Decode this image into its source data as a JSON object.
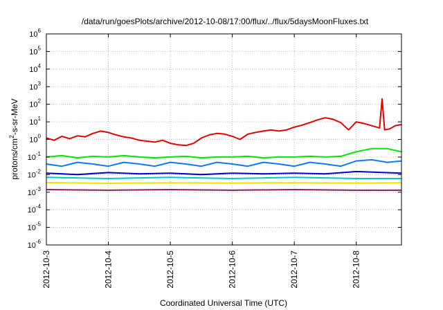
{
  "chart_data": {
    "type": "line",
    "title": "/data/run/goesPlots/archive/2012-10-08/17:00/flux/../flux/5daysMoonFluxes.txt",
    "xlabel": "Coordinated Universal Time (UTC)",
    "ylabel": {
      "base": "protons/cm",
      "sup": "2",
      "rest": "-s-sr-MeV"
    },
    "y_scale": "log",
    "ylim": [
      1e-06,
      1000000.0
    ],
    "xlim": [
      "2012-10-03 00:00",
      "2012-10-08 17:30"
    ],
    "grid": true,
    "legend": "none",
    "x_ticks": [
      "2012-10-3",
      "2012-10-4",
      "2012-10-5",
      "2012-10-6",
      "2012-10-7",
      "2012-10-8"
    ],
    "y_ticks": [
      {
        "value": 1000000.0,
        "mant": "10",
        "exp": "6"
      },
      {
        "value": 100000.0,
        "mant": "10",
        "exp": "5"
      },
      {
        "value": 10000.0,
        "mant": "10",
        "exp": "4"
      },
      {
        "value": 1000.0,
        "mant": "10",
        "exp": "3"
      },
      {
        "value": 100.0,
        "mant": "10",
        "exp": "2"
      },
      {
        "value": 10.0,
        "mant": "10",
        "exp": "1"
      },
      {
        "value": 1.0,
        "mant": "10",
        "exp": "0"
      },
      {
        "value": 0.1,
        "mant": "10",
        "exp": "-1"
      },
      {
        "value": 0.01,
        "mant": "10",
        "exp": "-2"
      },
      {
        "value": 0.001,
        "mant": "10",
        "exp": "-3"
      },
      {
        "value": 0.0001,
        "mant": "10",
        "exp": "-4"
      },
      {
        "value": 1e-05,
        "mant": "10",
        "exp": "-5"
      },
      {
        "value": 1e-06,
        "mant": "10",
        "exp": "-6"
      }
    ],
    "series": [
      {
        "color": "#e60000",
        "points": [
          [
            "2012-10-03 00:00",
            1.2
          ],
          [
            "2012-10-03 03:00",
            0.9
          ],
          [
            "2012-10-03 06:00",
            1.5
          ],
          [
            "2012-10-03 09:00",
            1.1
          ],
          [
            "2012-10-03 12:00",
            1.6
          ],
          [
            "2012-10-03 15:00",
            1.4
          ],
          [
            "2012-10-03 18:00",
            2.2
          ],
          [
            "2012-10-03 21:00",
            3.0
          ],
          [
            "2012-10-04 00:00",
            2.5
          ],
          [
            "2012-10-04 03:00",
            1.8
          ],
          [
            "2012-10-04 06:00",
            1.4
          ],
          [
            "2012-10-04 09:00",
            1.2
          ],
          [
            "2012-10-04 12:00",
            0.9
          ],
          [
            "2012-10-04 15:00",
            0.8
          ],
          [
            "2012-10-04 18:00",
            0.7
          ],
          [
            "2012-10-04 21:00",
            0.9
          ],
          [
            "2012-10-05 00:00",
            0.6
          ],
          [
            "2012-10-05 03:00",
            0.5
          ],
          [
            "2012-10-05 06:00",
            0.45
          ],
          [
            "2012-10-05 09:00",
            0.6
          ],
          [
            "2012-10-05 12:00",
            1.2
          ],
          [
            "2012-10-05 15:00",
            1.8
          ],
          [
            "2012-10-05 18:00",
            2.2
          ],
          [
            "2012-10-05 21:00",
            2.0
          ],
          [
            "2012-10-06 00:00",
            1.5
          ],
          [
            "2012-10-06 03:00",
            1.0
          ],
          [
            "2012-10-06 06:00",
            2.0
          ],
          [
            "2012-10-06 09:00",
            2.5
          ],
          [
            "2012-10-06 12:00",
            3.0
          ],
          [
            "2012-10-06 15:00",
            3.5
          ],
          [
            "2012-10-06 18:00",
            3.0
          ],
          [
            "2012-10-06 21:00",
            3.5
          ],
          [
            "2012-10-07 00:00",
            5.0
          ],
          [
            "2012-10-07 03:00",
            6.5
          ],
          [
            "2012-10-07 06:00",
            9.0
          ],
          [
            "2012-10-07 09:00",
            13
          ],
          [
            "2012-10-07 12:00",
            17
          ],
          [
            "2012-10-07 15:00",
            14
          ],
          [
            "2012-10-07 18:00",
            9
          ],
          [
            "2012-10-07 21:00",
            3.5
          ],
          [
            "2012-10-08 00:00",
            10
          ],
          [
            "2012-10-08 03:00",
            8
          ],
          [
            "2012-10-08 06:00",
            6
          ],
          [
            "2012-10-08 09:00",
            4.5
          ],
          [
            "2012-10-08 10:00",
            200
          ],
          [
            "2012-10-08 11:00",
            3.5
          ],
          [
            "2012-10-08 13:00",
            4
          ],
          [
            "2012-10-08 15:00",
            6
          ],
          [
            "2012-10-08 17:30",
            7
          ]
        ]
      },
      {
        "color": "#00e600",
        "points": [
          [
            "2012-10-03 00:00",
            0.1
          ],
          [
            "2012-10-03 06:00",
            0.12
          ],
          [
            "2012-10-03 12:00",
            0.09
          ],
          [
            "2012-10-03 18:00",
            0.11
          ],
          [
            "2012-10-04 00:00",
            0.1
          ],
          [
            "2012-10-04 06:00",
            0.12
          ],
          [
            "2012-10-04 12:00",
            0.1
          ],
          [
            "2012-10-04 18:00",
            0.09
          ],
          [
            "2012-10-05 00:00",
            0.1
          ],
          [
            "2012-10-05 06:00",
            0.11
          ],
          [
            "2012-10-05 12:00",
            0.09
          ],
          [
            "2012-10-05 18:00",
            0.1
          ],
          [
            "2012-10-06 00:00",
            0.1
          ],
          [
            "2012-10-06 06:00",
            0.11
          ],
          [
            "2012-10-06 12:00",
            0.09
          ],
          [
            "2012-10-06 18:00",
            0.1
          ],
          [
            "2012-10-07 00:00",
            0.1
          ],
          [
            "2012-10-07 06:00",
            0.11
          ],
          [
            "2012-10-07 12:00",
            0.1
          ],
          [
            "2012-10-07 18:00",
            0.11
          ],
          [
            "2012-10-08 00:00",
            0.2
          ],
          [
            "2012-10-08 06:00",
            0.3
          ],
          [
            "2012-10-08 12:00",
            0.3
          ],
          [
            "2012-10-08 17:30",
            0.2
          ]
        ]
      },
      {
        "color": "#0a78ff",
        "points": [
          [
            "2012-10-03 00:00",
            0.04
          ],
          [
            "2012-10-03 06:00",
            0.03
          ],
          [
            "2012-10-03 12:00",
            0.05
          ],
          [
            "2012-10-03 18:00",
            0.04
          ],
          [
            "2012-10-04 00:00",
            0.03
          ],
          [
            "2012-10-04 06:00",
            0.05
          ],
          [
            "2012-10-04 12:00",
            0.04
          ],
          [
            "2012-10-04 18:00",
            0.03
          ],
          [
            "2012-10-05 00:00",
            0.05
          ],
          [
            "2012-10-05 06:00",
            0.04
          ],
          [
            "2012-10-05 12:00",
            0.03
          ],
          [
            "2012-10-05 18:00",
            0.05
          ],
          [
            "2012-10-06 00:00",
            0.04
          ],
          [
            "2012-10-06 06:00",
            0.03
          ],
          [
            "2012-10-06 12:00",
            0.05
          ],
          [
            "2012-10-06 18:00",
            0.04
          ],
          [
            "2012-10-07 00:00",
            0.03
          ],
          [
            "2012-10-07 06:00",
            0.05
          ],
          [
            "2012-10-07 12:00",
            0.04
          ],
          [
            "2012-10-07 18:00",
            0.03
          ],
          [
            "2012-10-08 00:00",
            0.06
          ],
          [
            "2012-10-08 06:00",
            0.07
          ],
          [
            "2012-10-08 12:00",
            0.05
          ],
          [
            "2012-10-08 17:30",
            0.06
          ]
        ]
      },
      {
        "color": "#0000c8",
        "points": [
          [
            "2012-10-03 00:00",
            0.012
          ],
          [
            "2012-10-03 12:00",
            0.01
          ],
          [
            "2012-10-04 00:00",
            0.013
          ],
          [
            "2012-10-04 12:00",
            0.011
          ],
          [
            "2012-10-05 00:00",
            0.012
          ],
          [
            "2012-10-05 12:00",
            0.01
          ],
          [
            "2012-10-06 00:00",
            0.012
          ],
          [
            "2012-10-06 12:00",
            0.011
          ],
          [
            "2012-10-07 00:00",
            0.012
          ],
          [
            "2012-10-07 12:00",
            0.011
          ],
          [
            "2012-10-08 00:00",
            0.015
          ],
          [
            "2012-10-08 17:30",
            0.012
          ]
        ]
      },
      {
        "color": "#00c8c8",
        "points": [
          [
            "2012-10-03 00:00",
            0.007
          ],
          [
            "2012-10-04 00:00",
            0.006
          ],
          [
            "2012-10-05 00:00",
            0.007
          ],
          [
            "2012-10-06 00:00",
            0.006
          ],
          [
            "2012-10-07 00:00",
            0.007
          ],
          [
            "2012-10-08 00:00",
            0.006
          ],
          [
            "2012-10-08 17:30",
            0.006
          ]
        ]
      },
      {
        "color": "#f0e000",
        "points": [
          [
            "2012-10-03 00:00",
            0.0035
          ],
          [
            "2012-10-04 00:00",
            0.0032
          ],
          [
            "2012-10-05 00:00",
            0.0034
          ],
          [
            "2012-10-06 00:00",
            0.0033
          ],
          [
            "2012-10-07 00:00",
            0.0034
          ],
          [
            "2012-10-08 00:00",
            0.0033
          ],
          [
            "2012-10-08 17:30",
            0.0034
          ]
        ]
      },
      {
        "color": "#8b1a6b",
        "points": [
          [
            "2012-10-03 00:00",
            0.0014
          ],
          [
            "2012-10-04 00:00",
            0.0013
          ],
          [
            "2012-10-05 00:00",
            0.0014
          ],
          [
            "2012-10-06 00:00",
            0.0013
          ],
          [
            "2012-10-07 00:00",
            0.0014
          ],
          [
            "2012-10-08 00:00",
            0.0013
          ],
          [
            "2012-10-08 17:30",
            0.0013
          ]
        ]
      }
    ]
  }
}
